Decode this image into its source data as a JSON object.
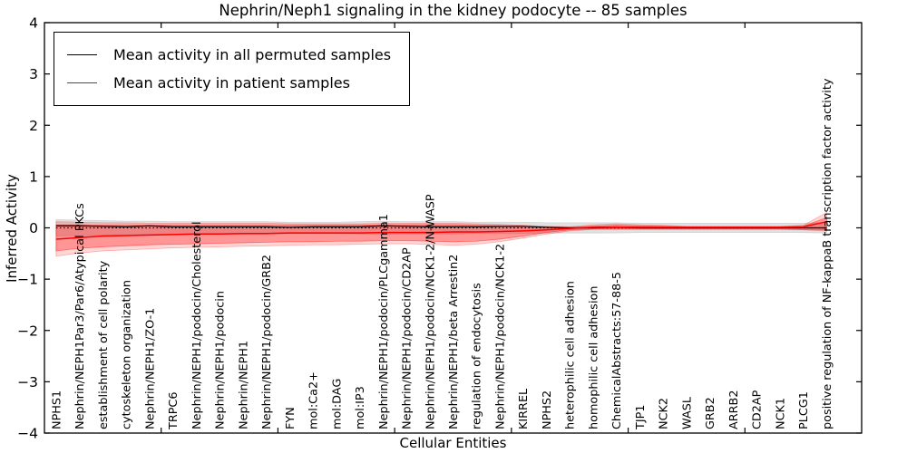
{
  "chart_data": {
    "type": "line",
    "title": "Nephrin/Neph1 signaling in the kidney podocyte -- 85 samples",
    "xlabel": "Cellular Entities",
    "ylabel": "Inferred Activity",
    "xlim": [
      0,
      35
    ],
    "ylim": [
      -4,
      4
    ],
    "x_major_ticks": [
      5,
      10,
      15,
      20,
      25,
      30
    ],
    "yticks": [
      {
        "value": 4,
        "label": "4"
      },
      {
        "value": 3,
        "label": "3"
      },
      {
        "value": 2,
        "label": "2"
      },
      {
        "value": 1,
        "label": "1"
      },
      {
        "value": 0,
        "label": "0"
      },
      {
        "value": -1,
        "label": "−1"
      },
      {
        "value": -2,
        "label": "−2"
      },
      {
        "value": -3,
        "label": "−3"
      },
      {
        "value": -4,
        "label": "−4"
      }
    ],
    "grid": false,
    "legend_position": "upper-left",
    "zero_reference_line": {
      "value": 0,
      "style": "dotted",
      "color": "#000000"
    },
    "categories": [
      "NPHS1",
      "Nephrin/NEPH1Par3/Par6/Atypical PKCs",
      "establishment of cell polarity",
      "cytoskeleton organization",
      "Nephrin/NEPH1/ZO-1",
      "TRPC6",
      "Nephrin/NEPH1/podocin/Cholesterol",
      "Nephrin/NEPH1/podocin",
      "Nephrin/NEPH1",
      "Nephrin/NEPH1/podocin/GRB2",
      "FYN",
      "mol:Ca2+",
      "mol:DAG",
      "mol:IP3",
      "Nephrin/NEPH1/podocin/PLCgamma1",
      "Nephrin/NEPH1/podocin/CD2AP",
      "Nephrin/NEPH1/podocin/NCK1-2/N-WASP",
      "Nephrin/NEPH1/beta Arrestin2",
      "regulation of endocytosis",
      "Nephrin/NEPH1/podocin/NCK1-2",
      "KIRREL",
      "NPHS2",
      "heterophilic cell adhesion",
      "homophilic cell adhesion",
      "ChemicalAbstracts:57-88-5",
      "TJP1",
      "NCK2",
      "WASL",
      "GRB2",
      "ARRB2",
      "CD2AP",
      "NCK1",
      "PLCG1",
      "positive regulation of NF-kappaB transcription factor activity"
    ],
    "series": [
      {
        "name": "Mean activity in all permuted samples",
        "color": "#000000",
        "values": [
          0.04,
          0.04,
          0.03,
          0.02,
          0.04,
          0.02,
          0.02,
          0.02,
          0.02,
          0.02,
          0.01,
          0.02,
          0.02,
          0.02,
          0.04,
          0.03,
          0.02,
          0.02,
          0.02,
          0.03,
          0.03,
          0.01,
          0.0,
          0.0,
          0.01,
          0.0,
          0.0,
          0.0,
          0.0,
          0.0,
          0.0,
          0.0,
          0.0,
          0.0
        ]
      },
      {
        "name": "Mean activity in patient samples",
        "color": "#ff0000",
        "values": [
          -0.22,
          -0.19,
          -0.16,
          -0.15,
          -0.14,
          -0.13,
          -0.12,
          -0.12,
          -0.11,
          -0.11,
          -0.1,
          -0.1,
          -0.1,
          -0.1,
          -0.09,
          -0.09,
          -0.09,
          -0.08,
          -0.08,
          -0.07,
          -0.06,
          -0.04,
          -0.01,
          0.01,
          0.01,
          0.01,
          0.01,
          0.01,
          0.01,
          0.01,
          0.01,
          0.01,
          0.02,
          0.12
        ]
      }
    ],
    "bands": [
      {
        "id": "permuted-spread",
        "color": "#bdbdbd",
        "opacity": 0.45,
        "upper": [
          0.16,
          0.15,
          0.14,
          0.13,
          0.13,
          0.12,
          0.12,
          0.12,
          0.12,
          0.12,
          0.11,
          0.11,
          0.11,
          0.12,
          0.13,
          0.12,
          0.12,
          0.12,
          0.11,
          0.11,
          0.11,
          0.1,
          0.1,
          0.1,
          0.1,
          0.09,
          0.09,
          0.09,
          0.09,
          0.09,
          0.09,
          0.09,
          0.09,
          0.1
        ],
        "lower": [
          -0.16,
          -0.15,
          -0.14,
          -0.13,
          -0.13,
          -0.12,
          -0.12,
          -0.12,
          -0.12,
          -0.12,
          -0.11,
          -0.11,
          -0.11,
          -0.12,
          -0.13,
          -0.12,
          -0.12,
          -0.12,
          -0.11,
          -0.11,
          -0.11,
          -0.1,
          -0.1,
          -0.1,
          -0.1,
          -0.09,
          -0.09,
          -0.09,
          -0.09,
          -0.09,
          -0.09,
          -0.09,
          -0.09,
          -0.1
        ]
      },
      {
        "id": "patient-spread-outer",
        "color": "#ff0000",
        "opacity": 0.16,
        "upper": [
          0.12,
          0.11,
          0.1,
          0.1,
          0.09,
          0.09,
          0.09,
          0.09,
          0.09,
          0.09,
          0.08,
          0.08,
          0.08,
          0.08,
          0.09,
          0.09,
          0.09,
          0.09,
          0.08,
          0.07,
          0.05,
          0.03,
          0.02,
          0.06,
          0.08,
          0.06,
          0.05,
          0.03,
          0.03,
          0.03,
          0.03,
          0.03,
          0.05,
          0.3
        ],
        "lower": [
          -0.55,
          -0.49,
          -0.45,
          -0.43,
          -0.41,
          -0.39,
          -0.38,
          -0.37,
          -0.36,
          -0.35,
          -0.34,
          -0.33,
          -0.33,
          -0.32,
          -0.31,
          -0.31,
          -0.32,
          -0.34,
          -0.32,
          -0.27,
          -0.2,
          -0.12,
          -0.06,
          -0.03,
          -0.03,
          -0.03,
          -0.03,
          -0.03,
          -0.03,
          -0.03,
          -0.03,
          -0.03,
          -0.04,
          -0.06
        ]
      },
      {
        "id": "patient-spread-inner",
        "color": "#ff0000",
        "opacity": 0.3,
        "upper": [
          0.06,
          0.06,
          0.05,
          0.05,
          0.05,
          0.05,
          0.05,
          0.05,
          0.05,
          0.05,
          0.05,
          0.05,
          0.05,
          0.05,
          0.06,
          0.06,
          0.06,
          0.06,
          0.05,
          0.04,
          0.03,
          0.02,
          0.01,
          0.03,
          0.05,
          0.04,
          0.03,
          0.02,
          0.02,
          0.02,
          0.02,
          0.02,
          0.03,
          0.2
        ],
        "lower": [
          -0.45,
          -0.4,
          -0.37,
          -0.35,
          -0.33,
          -0.32,
          -0.31,
          -0.3,
          -0.29,
          -0.28,
          -0.27,
          -0.27,
          -0.26,
          -0.26,
          -0.25,
          -0.25,
          -0.26,
          -0.27,
          -0.26,
          -0.22,
          -0.16,
          -0.09,
          -0.04,
          -0.02,
          -0.02,
          -0.02,
          -0.02,
          -0.02,
          -0.02,
          -0.02,
          -0.02,
          -0.02,
          -0.03,
          -0.04
        ]
      }
    ]
  }
}
